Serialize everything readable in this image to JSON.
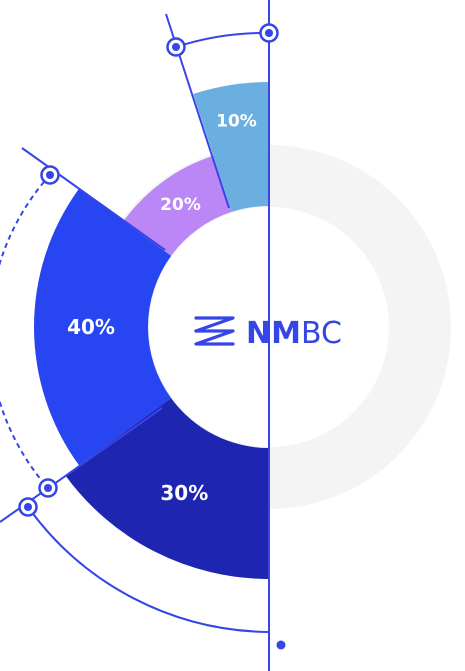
{
  "brand": {
    "name_bold": "NM",
    "name_light": "BC",
    "logo_icon": "zz-wave-icon",
    "color": "#3545e6"
  },
  "colors": {
    "track": "#f4f4f4",
    "accent_line": "#3545e6",
    "slice_10": "#6aafe0",
    "slice_20": "#bb86f5",
    "slice_40": "#2746f2",
    "slice_30": "#1d25b1"
  },
  "chart_data": {
    "type": "pie",
    "variant": "half-donut",
    "categories": [
      "10%",
      "20%",
      "40%",
      "30%"
    ],
    "values": [
      10,
      20,
      40,
      30
    ],
    "labels": [
      "10%",
      "20%",
      "40%",
      "30%"
    ]
  }
}
